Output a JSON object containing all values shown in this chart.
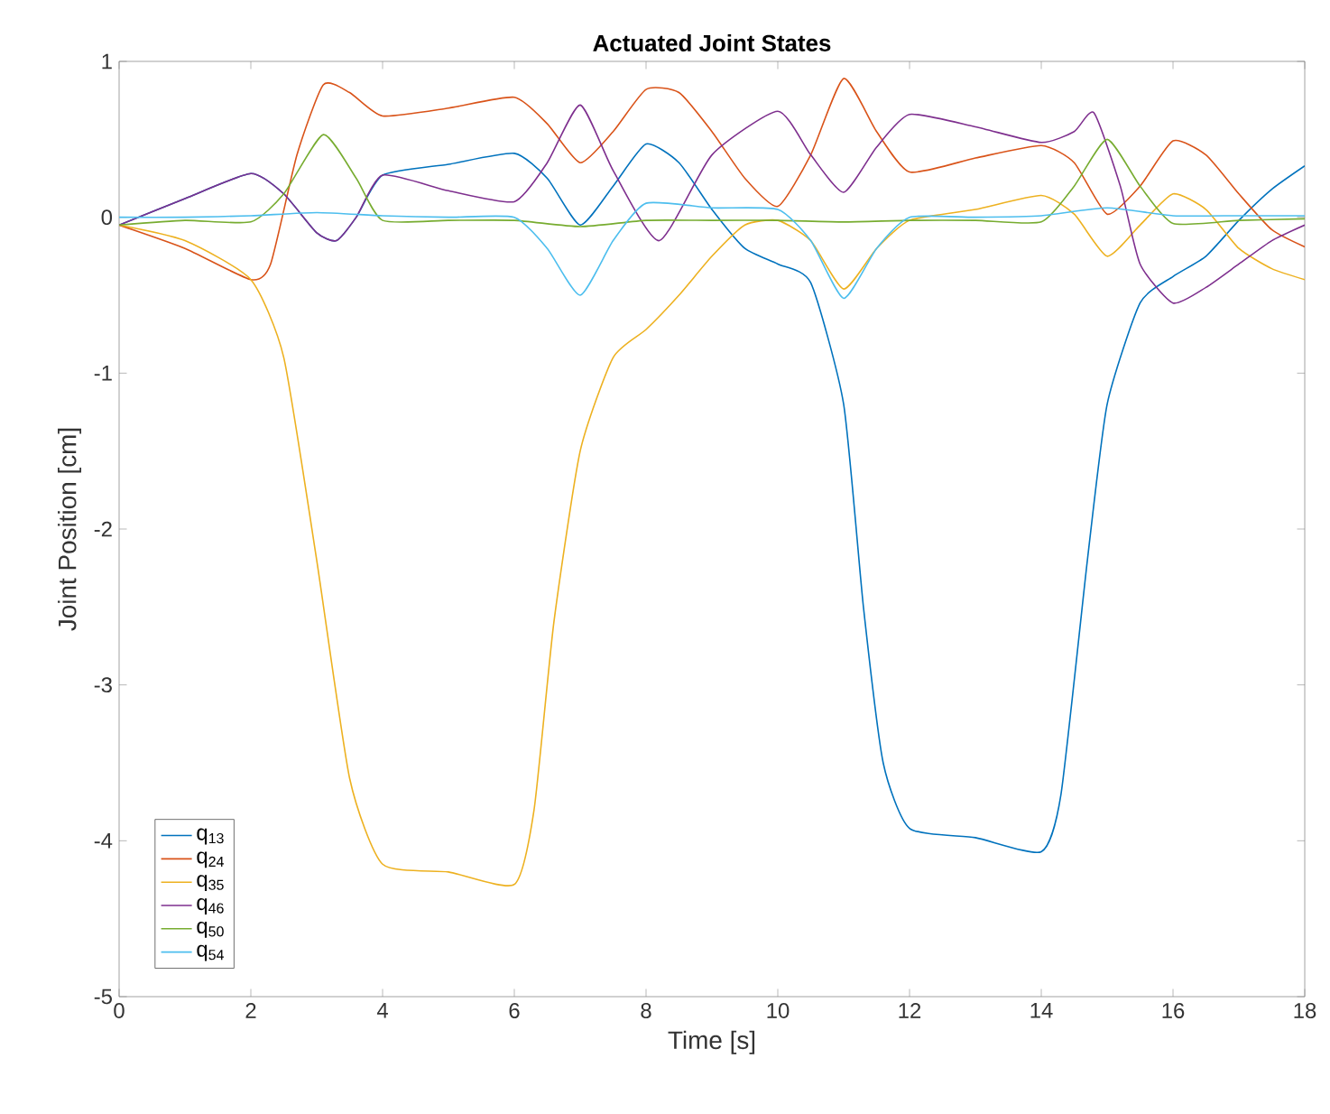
{
  "chart_data": {
    "type": "line",
    "title": "Actuated Joint States",
    "xlabel": "Time [s]",
    "ylabel": "Joint Position [cm]",
    "xlim": [
      0,
      18
    ],
    "ylim": [
      -5,
      1
    ],
    "xticks": [
      0,
      2,
      4,
      6,
      8,
      10,
      12,
      14,
      16,
      18
    ],
    "yticks": [
      -5,
      -4,
      -3,
      -2,
      -1,
      0,
      1
    ],
    "grid": false,
    "legend": "bottom left",
    "marker": "none",
    "line_style": "solid",
    "series": [
      {
        "name": "q$_{13}$",
        "color": "#0072bd",
        "x": [
          0,
          1,
          2,
          2.5,
          3,
          3.3,
          3.6,
          4,
          5,
          6,
          6.5,
          7,
          7.5,
          8,
          8.5,
          9,
          9.5,
          10,
          10.5,
          11,
          11.3,
          11.6,
          12,
          13,
          14,
          14.3,
          14.7,
          15,
          15.5,
          16,
          16.5,
          17,
          17.5,
          18
        ],
        "values": [
          -0.05,
          0.12,
          0.28,
          0.15,
          -0.1,
          -0.15,
          0.0,
          0.27,
          0.34,
          0.41,
          0.25,
          -0.05,
          0.2,
          0.47,
          0.35,
          0.05,
          -0.2,
          -0.3,
          -0.42,
          -1.2,
          -2.5,
          -3.5,
          -3.92,
          -3.98,
          -4.07,
          -3.7,
          -2.2,
          -1.2,
          -0.55,
          -0.38,
          -0.25,
          -0.02,
          0.18,
          0.33
        ]
      },
      {
        "name": "q$_{24}$",
        "color": "#d95319",
        "x": [
          0,
          1,
          2,
          2.3,
          2.7,
          3.1,
          3.5,
          4,
          5,
          6,
          6.5,
          7,
          7.5,
          8,
          8.5,
          9,
          9.5,
          10,
          10.5,
          11,
          11.5,
          12,
          13,
          14,
          14.5,
          15,
          15.5,
          16,
          16.5,
          17,
          17.5,
          18
        ],
        "values": [
          -0.05,
          -0.2,
          -0.4,
          -0.3,
          0.4,
          0.85,
          0.8,
          0.65,
          0.7,
          0.77,
          0.6,
          0.35,
          0.55,
          0.82,
          0.8,
          0.55,
          0.25,
          0.07,
          0.4,
          0.89,
          0.55,
          0.29,
          0.38,
          0.46,
          0.35,
          0.02,
          0.2,
          0.49,
          0.4,
          0.15,
          -0.08,
          -0.19
        ]
      },
      {
        "name": "q$_{35}$",
        "color": "#edb120",
        "x": [
          0,
          1,
          2,
          2.5,
          3,
          3.5,
          4,
          5,
          6,
          6.3,
          6.6,
          7,
          7.5,
          8,
          8.5,
          9,
          9.5,
          10,
          10.5,
          11,
          11.5,
          12,
          13,
          14,
          14.5,
          15,
          15.5,
          16,
          16.5,
          17,
          17.5,
          18
        ],
        "values": [
          -0.05,
          -0.15,
          -0.4,
          -0.9,
          -2.2,
          -3.6,
          -4.15,
          -4.2,
          -4.28,
          -3.8,
          -2.6,
          -1.5,
          -0.9,
          -0.72,
          -0.5,
          -0.25,
          -0.05,
          -0.02,
          -0.15,
          -0.46,
          -0.2,
          -0.02,
          0.05,
          0.14,
          0.02,
          -0.25,
          -0.05,
          0.15,
          0.05,
          -0.2,
          -0.33,
          -0.4
        ]
      },
      {
        "name": "q$_{46}$",
        "color": "#7e2f8e",
        "x": [
          0,
          1,
          2,
          2.5,
          3,
          3.3,
          3.6,
          4,
          5,
          6,
          6.5,
          7,
          7.5,
          8.2,
          9,
          10,
          10.5,
          11,
          11.5,
          12,
          13,
          14,
          14.5,
          14.8,
          15.2,
          15.5,
          16,
          16.5,
          17,
          17.5,
          18
        ],
        "values": [
          -0.05,
          0.12,
          0.28,
          0.15,
          -0.1,
          -0.15,
          0.0,
          0.27,
          0.17,
          0.1,
          0.35,
          0.72,
          0.3,
          -0.15,
          0.4,
          0.68,
          0.4,
          0.16,
          0.45,
          0.66,
          0.58,
          0.48,
          0.55,
          0.67,
          0.2,
          -0.3,
          -0.55,
          -0.45,
          -0.3,
          -0.15,
          -0.05
        ]
      },
      {
        "name": "q$_{50}$",
        "color": "#77ac30",
        "x": [
          0,
          1,
          2,
          2.5,
          3.1,
          3.6,
          4,
          5,
          6,
          7,
          8,
          9,
          10,
          11,
          12,
          13,
          14,
          14.5,
          15,
          15.5,
          16,
          17,
          18
        ],
        "values": [
          -0.05,
          -0.02,
          -0.03,
          0.15,
          0.53,
          0.25,
          -0.02,
          -0.02,
          -0.02,
          -0.06,
          -0.02,
          -0.02,
          -0.02,
          -0.03,
          -0.02,
          -0.02,
          -0.03,
          0.2,
          0.5,
          0.2,
          -0.04,
          -0.02,
          -0.01
        ]
      },
      {
        "name": "q$_{54}$",
        "color": "#4dbeee",
        "x": [
          0,
          1,
          2,
          3,
          4,
          5,
          6,
          6.5,
          7,
          7.5,
          8,
          9,
          10,
          10.5,
          11,
          11.5,
          12,
          13,
          14,
          15,
          16,
          17,
          18
        ],
        "values": [
          0,
          0.0,
          0.01,
          0.03,
          0.01,
          0.0,
          0.0,
          -0.2,
          -0.5,
          -0.15,
          0.09,
          0.06,
          0.05,
          -0.15,
          -0.52,
          -0.2,
          0.0,
          0.0,
          0.01,
          0.06,
          0.01,
          0.01,
          0.01
        ]
      }
    ]
  }
}
